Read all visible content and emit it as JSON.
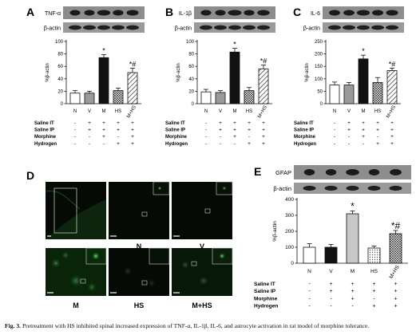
{
  "chart_data": [
    {
      "panel": "A",
      "type": "bar",
      "blot_labels": [
        "TNF-α",
        "β-actin"
      ],
      "ylabel": "%β-actin",
      "ylim": [
        0,
        100
      ],
      "yticks": [
        "0",
        "20",
        "40",
        "60",
        "80",
        "100"
      ],
      "categories": [
        "N",
        "V",
        "M",
        "HS",
        "M+HS"
      ],
      "values": [
        17,
        17,
        74,
        21,
        50
      ],
      "errors": [
        4,
        3,
        5,
        4,
        7
      ],
      "annotations": [
        "",
        "",
        "*",
        "",
        "*#"
      ],
      "fills": [
        "white",
        "gray",
        "black",
        "crosshatch",
        "hatch"
      ]
    },
    {
      "panel": "B",
      "type": "bar",
      "blot_labels": [
        "IL-1β",
        "β-actin"
      ],
      "ylabel": "%β-actin",
      "ylim": [
        0,
        100
      ],
      "yticks": [
        "0",
        "20",
        "40",
        "60",
        "80",
        "100"
      ],
      "categories": [
        "N",
        "V",
        "M",
        "HS",
        "M+HS"
      ],
      "values": [
        19,
        18,
        83,
        21,
        56
      ],
      "errors": [
        4,
        3,
        6,
        5,
        6
      ],
      "annotations": [
        "",
        "",
        "*",
        "",
        "*#"
      ],
      "fills": [
        "white",
        "gray",
        "black",
        "crosshatch",
        "hatch"
      ]
    },
    {
      "panel": "C",
      "type": "bar",
      "blot_labels": [
        "IL-6",
        "β-actin"
      ],
      "ylabel": "%β-actin",
      "ylim": [
        0,
        250
      ],
      "yticks": [
        "0",
        "50",
        "100",
        "150",
        "200",
        "250"
      ],
      "categories": [
        "N",
        "V",
        "M",
        "HS",
        "M+HS"
      ],
      "values": [
        75,
        75,
        180,
        85,
        133
      ],
      "errors": [
        12,
        10,
        15,
        20,
        10
      ],
      "annotations": [
        "",
        "",
        "*",
        "",
        "*#"
      ],
      "fills": [
        "white",
        "gray",
        "black",
        "crosshatch",
        "hatch"
      ]
    },
    {
      "panel": "E",
      "type": "bar",
      "blot_labels": [
        "GFAP",
        "β-actin"
      ],
      "ylabel": "%β-actin",
      "ylim": [
        0,
        400
      ],
      "yticks": [
        "0",
        "100",
        "200",
        "300",
        "400"
      ],
      "categories": [
        "N",
        "V",
        "M",
        "HS",
        "M+HS"
      ],
      "values": [
        100,
        100,
        310,
        95,
        185
      ],
      "errors": [
        22,
        18,
        18,
        12,
        20
      ],
      "annotations": [
        "",
        "",
        "*",
        "",
        "*#"
      ],
      "fills": [
        "white",
        "black",
        "lightgray",
        "dots",
        "crosshatch"
      ]
    }
  ],
  "treatments": {
    "rows": [
      "Saline IT",
      "Saline IP",
      "Morphine",
      "Hydrogen"
    ],
    "signs": [
      [
        "-",
        "+",
        "+",
        "+",
        "+"
      ],
      [
        "-",
        "+",
        "+",
        "+",
        "+"
      ],
      [
        "-",
        "-",
        "+",
        "-",
        "+"
      ],
      [
        "-",
        "-",
        "-",
        "+",
        "+"
      ]
    ]
  },
  "micrographs": {
    "panel": "D",
    "labels": [
      "",
      "N",
      "V",
      "M",
      "HS",
      "M+HS"
    ]
  },
  "panel_letters": [
    "A",
    "B",
    "C",
    "D",
    "E"
  ],
  "caption": {
    "prefix": "Fig. 3.",
    "text": "Pretreatment with HS inhibited spinal increased expression of TNF-α, IL-1β, IL-6, and astrocyte activation in rat model of morphine tolerance."
  },
  "colors": {
    "micrograph_bg": "#050a05",
    "micrograph_signal": "#3fbf3f",
    "black_bar": "#111111",
    "gray_bar": "#9a9a9a",
    "light_bar": "#c8c8c8"
  }
}
